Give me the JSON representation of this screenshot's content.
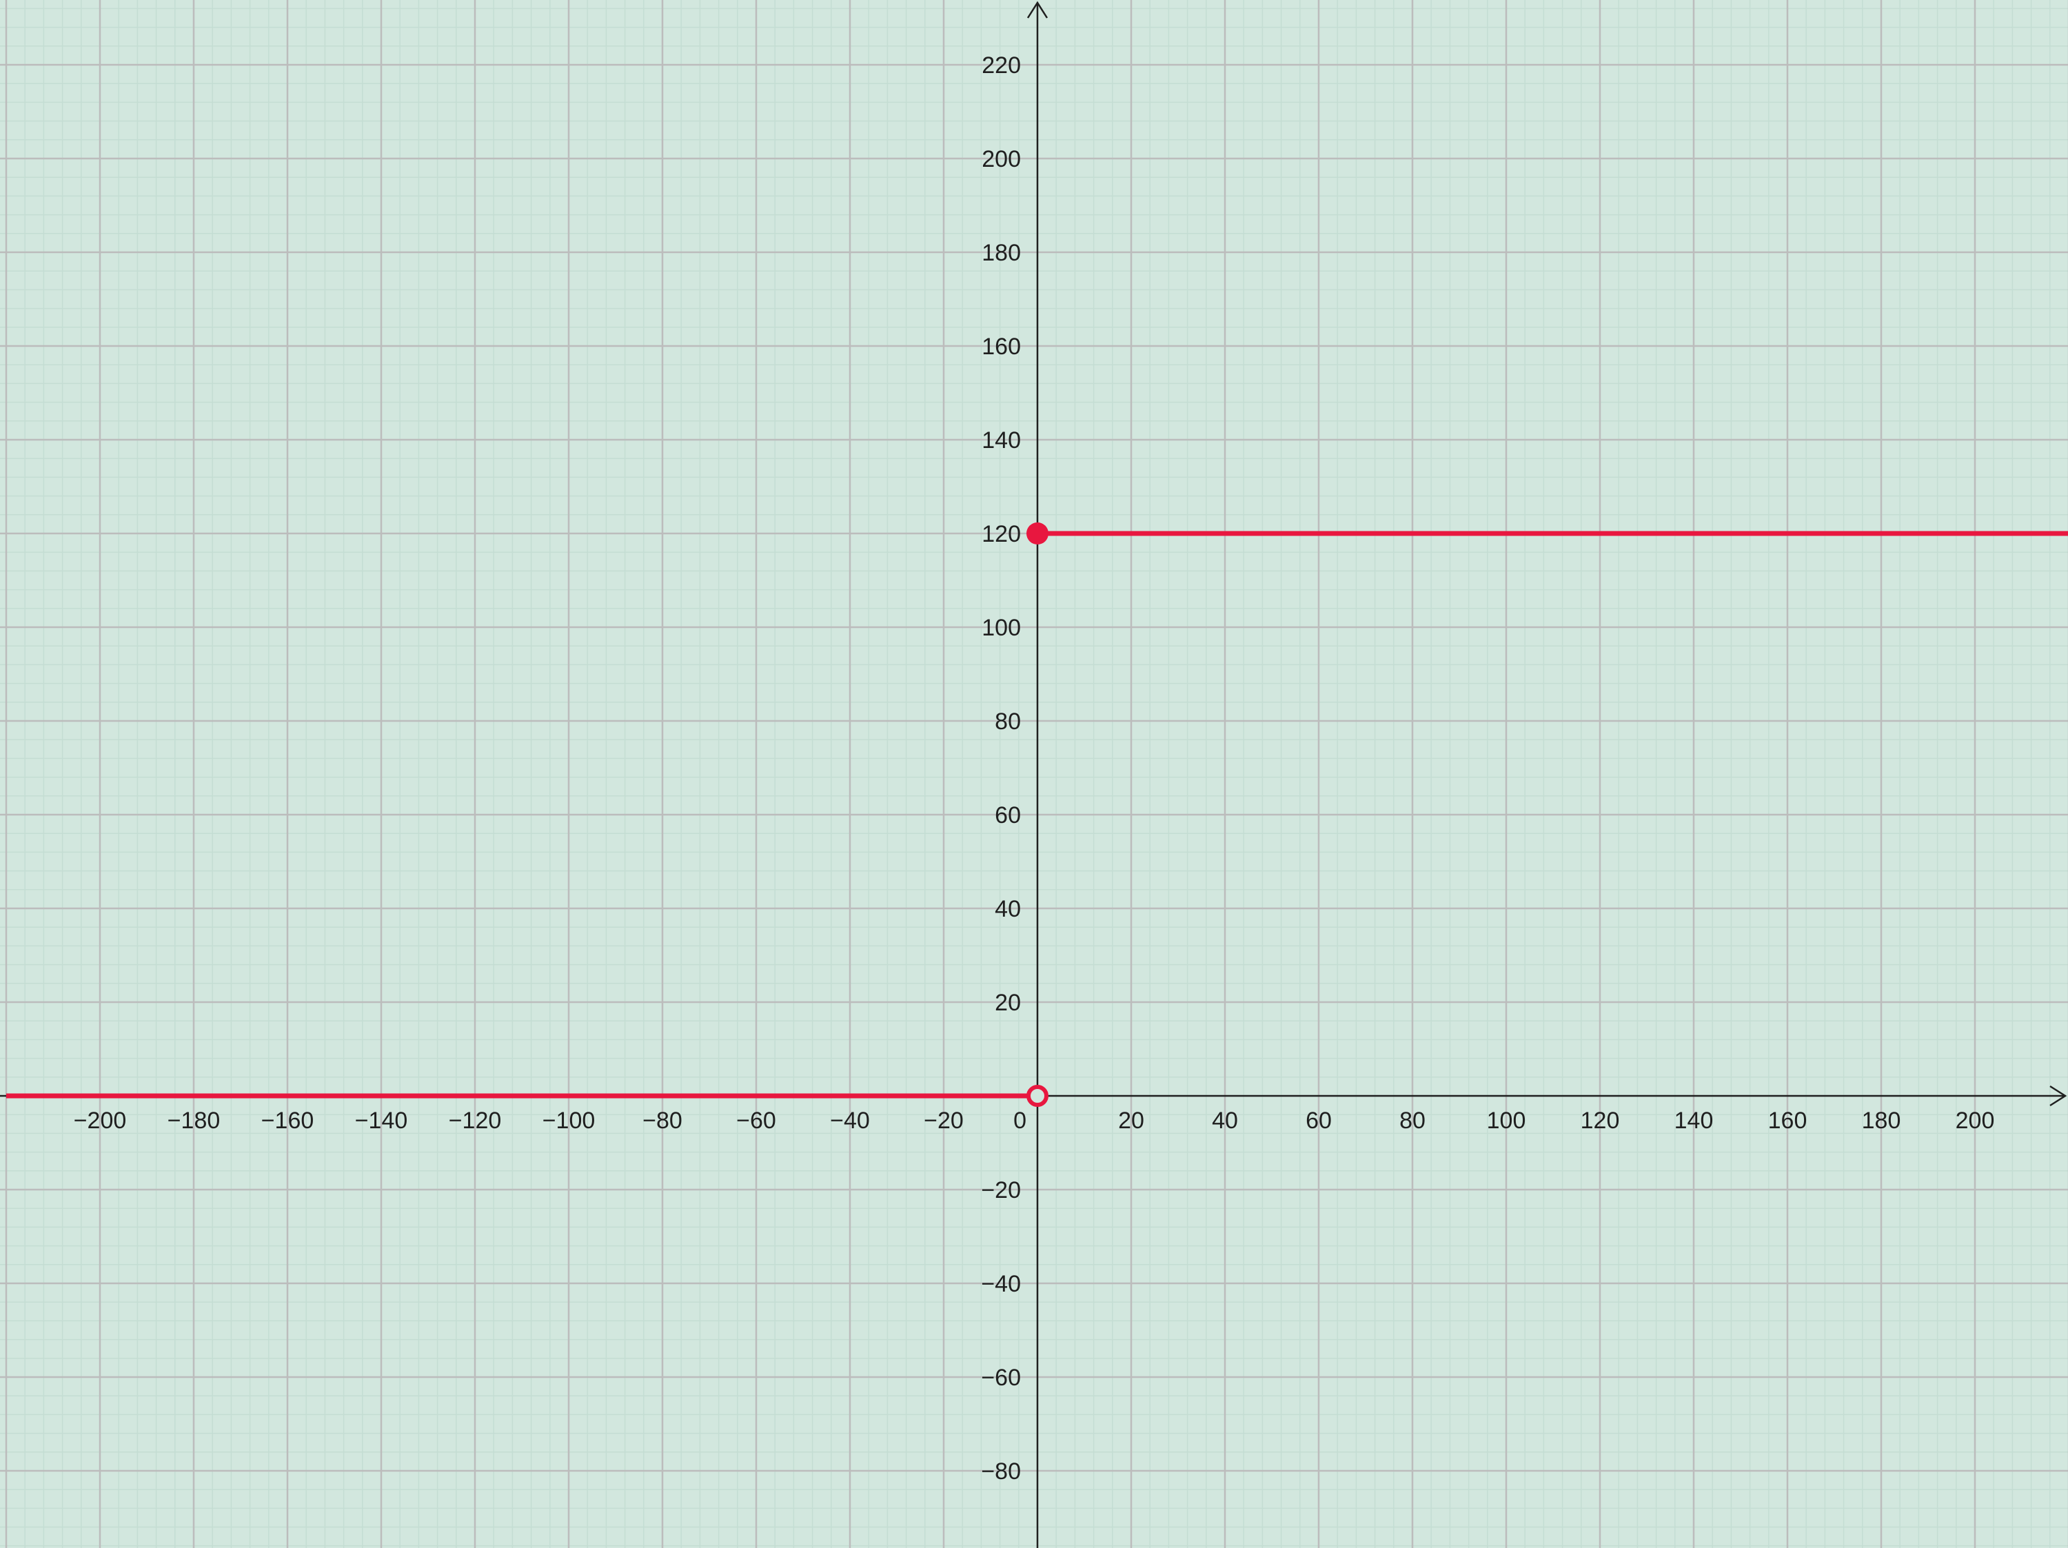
{
  "chart_data": {
    "type": "line",
    "title": "",
    "xlabel": "",
    "ylabel": "",
    "xlim": [
      -220,
      220
    ],
    "ylim": [
      -96,
      233
    ],
    "x_ticks": [
      -200,
      -180,
      -160,
      -140,
      -120,
      -100,
      -80,
      -60,
      -40,
      -20,
      0,
      20,
      40,
      60,
      80,
      100,
      120,
      140,
      160,
      180,
      200
    ],
    "y_ticks": [
      -80,
      -60,
      -40,
      -20,
      20,
      40,
      60,
      80,
      100,
      120,
      140,
      160,
      180,
      200,
      220
    ],
    "x_tick_labels": [
      "−200",
      "−180",
      "−160",
      "−140",
      "−120",
      "−100",
      "−80",
      "−60",
      "−40",
      "−20",
      "0",
      "20",
      "40",
      "60",
      "80",
      "100",
      "120",
      "140",
      "160",
      "180",
      "200"
    ],
    "y_tick_labels": [
      "−80",
      "−60",
      "−40",
      "−20",
      "20",
      "40",
      "60",
      "80",
      "100",
      "120",
      "140",
      "160",
      "180",
      "200",
      "220"
    ],
    "grid": true,
    "minor_grid": true,
    "series": [
      {
        "segment": "left",
        "x": [
          -220,
          0
        ],
        "y": [
          0,
          0
        ],
        "color": "#e8173f",
        "end_marker": "open"
      },
      {
        "segment": "right",
        "x": [
          0,
          220
        ],
        "y": [
          120,
          120
        ],
        "color": "#e8173f",
        "start_marker": "closed"
      }
    ],
    "background_color": "#d2e7de",
    "major_grid_color": "#bcbcbc",
    "minor_grid_color": "#c4ddd3",
    "axis_color": "#1f1f1f"
  }
}
